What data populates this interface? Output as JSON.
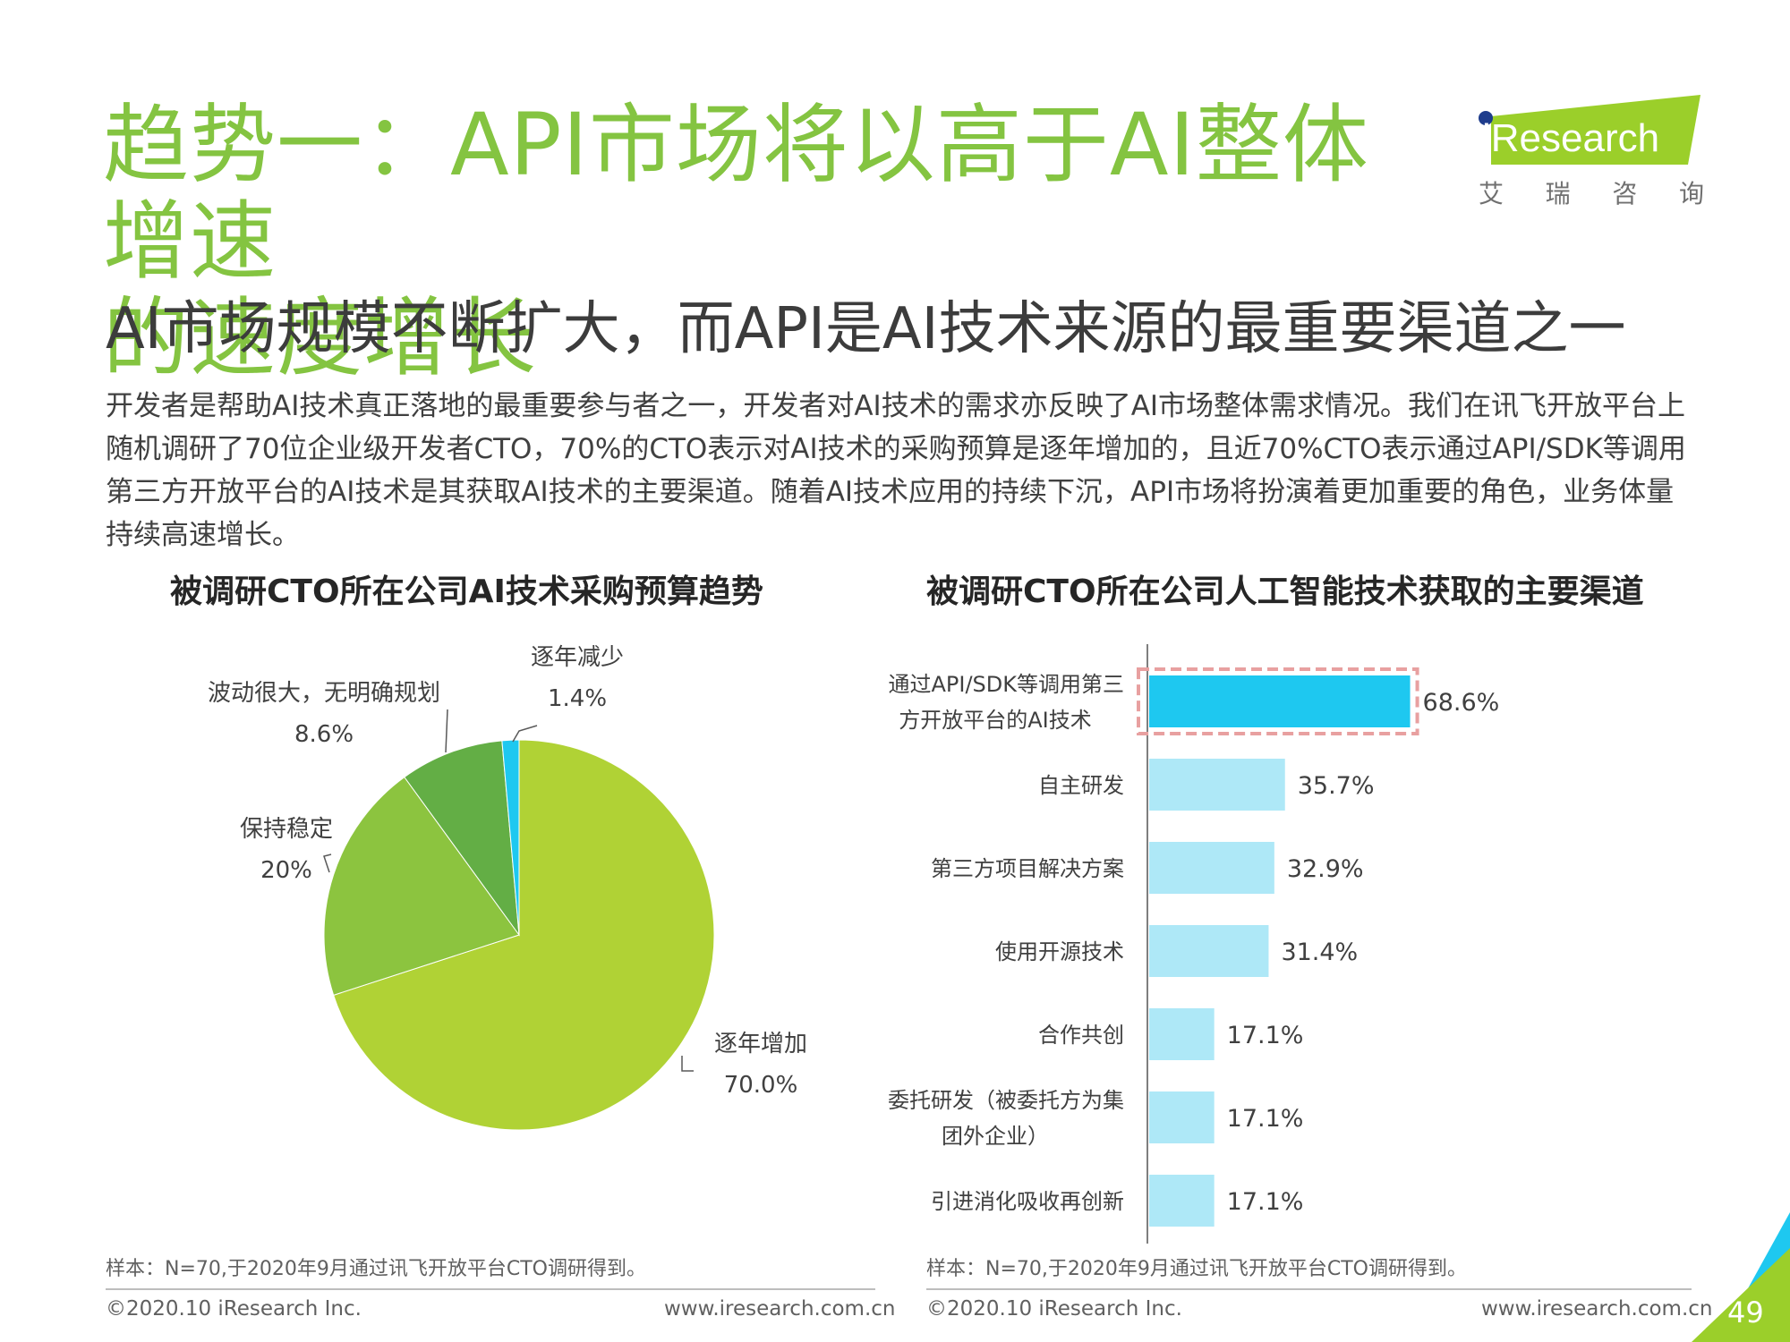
{
  "header": {
    "title_line1": "趋势一：API市场将以高于AI整体增速",
    "title_line2": "的速度增长",
    "subtitle": "AI市场规模不断扩大，而API是AI技术来源的最重要渠道之一",
    "body": "开发者是帮助AI技术真正落地的最重要参与者之一，开发者对AI技术的需求亦反映了AI市场整体需求情况。我们在讯飞开放平台上随机调研了70位企业级开发者CTO，70%的CTO表示对AI技术的采购预算是逐年增加的，且近70%CTO表示通过API/SDK等调用第三方开放平台的AI技术是其获取AI技术的主要渠道。随着AI技术应用的持续下沉，API市场将扮演着更加重要的角色，业务体量持续高速增长。"
  },
  "logo": {
    "wordmark": "iResearch",
    "chinese": [
      "艾",
      "瑞",
      "咨",
      "询"
    ]
  },
  "colors": {
    "title_green": "#84c441",
    "logo_green": "#9bcf2a",
    "bar_highlight": "#1ec8f0",
    "bar_normal": "#aee8f7",
    "dashed_box": "#e8a0a0"
  },
  "chart_data": [
    {
      "type": "pie",
      "title": "被调研CTO所在公司AI技术采购预算趋势",
      "slices": [
        {
          "label": "逐年增加",
          "value": 70.0,
          "value_label": "70.0%",
          "color": "#b0d235"
        },
        {
          "label": "保持稳定",
          "value": 20,
          "value_label": "20%",
          "color": "#8cc43f"
        },
        {
          "label": "波动很大，无明确规划",
          "value": 8.6,
          "value_label": "8.6%",
          "color": "#63ae45"
        },
        {
          "label": "逐年减少",
          "value": 1.4,
          "value_label": "1.4%",
          "color": "#1ec8f0"
        }
      ]
    },
    {
      "type": "bar",
      "orientation": "horizontal",
      "title": "被调研CTO所在公司人工智能技术获取的主要渠道",
      "categories": [
        [
          "通过API/SDK等调用第三",
          "方开放平台的AI技术"
        ],
        [
          "自主研发"
        ],
        [
          "第三方项目解决方案"
        ],
        [
          "使用开源技术"
        ],
        [
          "合作共创"
        ],
        [
          "委托研发（被委托方为集",
          "团外企业）"
        ],
        [
          "引进消化吸收再创新"
        ]
      ],
      "values": [
        68.6,
        35.7,
        32.9,
        31.4,
        17.1,
        17.1,
        17.1
      ],
      "value_labels": [
        "68.6%",
        "35.7%",
        "32.9%",
        "31.4%",
        "17.1%",
        "17.1%",
        "17.1%"
      ],
      "highlight_index": 0
    }
  ],
  "notes": {
    "left": "样本：N=70,于2020年9月通过讯飞开放平台CTO调研得到。",
    "right": "样本：N=70,于2020年9月通过讯飞开放平台CTO调研得到。"
  },
  "footer": {
    "copyright_left": "©2020.10 iResearch Inc.",
    "url_left": "www.iresearch.com.cn",
    "copyright_right": "©2020.10 iResearch Inc.",
    "url_right": "www.iresearch.com.cn",
    "page_number": "49"
  }
}
